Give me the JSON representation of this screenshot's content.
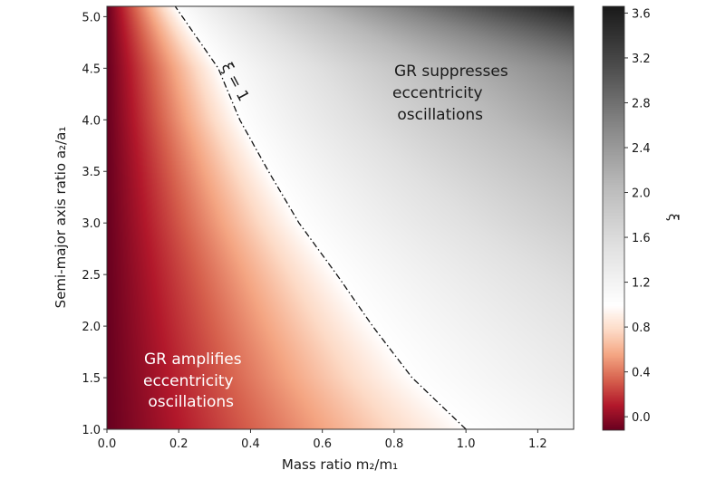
{
  "chart_data": {
    "type": "heatmap",
    "xlabel": "Mass ratio m₂/m₁",
    "ylabel": "Semi-major axis ratio a₂/a₁",
    "colorbar_label": "ξ",
    "xlim": [
      0,
      1.3
    ],
    "ylim": [
      1.0,
      5.1
    ],
    "clim": [
      -0.12,
      3.66
    ],
    "xticks": [
      "0.0",
      "0.2",
      "0.4",
      "0.6",
      "0.8",
      "1.0",
      "1.2"
    ],
    "yticks": [
      "1.0",
      "1.5",
      "2.0",
      "2.5",
      "3.0",
      "3.5",
      "4.0",
      "4.5",
      "5.0"
    ],
    "cticks": [
      "0.0",
      "0.4",
      "0.8",
      "1.2",
      "1.6",
      "2.0",
      "2.4",
      "2.8",
      "3.2",
      "3.6"
    ],
    "contour": {
      "label": "ξ = 1",
      "a": [
        1.0,
        1.5,
        2.0,
        2.5,
        3.0,
        3.5,
        4.0,
        4.5,
        5.1
      ],
      "m": [
        1.0,
        0.85,
        0.74,
        0.64,
        0.535,
        0.45,
        0.37,
        0.31,
        0.19
      ]
    },
    "annotations": {
      "suppress": [
        "GR suppresses",
        "eccentricity",
        " oscillations"
      ],
      "amplify": [
        "GR amplifies",
        "eccentricity",
        " oscillations"
      ]
    },
    "colormap": {
      "low": [
        "#67001f",
        "#b2182b",
        "#d6604d",
        "#f4a582",
        "#fddbc7",
        "#ffffff"
      ],
      "high": [
        "#ffffff",
        "#e0e0e0",
        "#bababa",
        "#878787",
        "#4d4d4d",
        "#1a1a1a"
      ]
    }
  }
}
